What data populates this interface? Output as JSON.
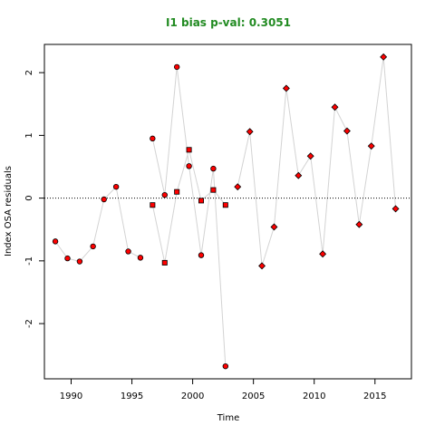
{
  "chart_data": {
    "type": "scatter",
    "title": "I1 bias p-val: 0.3051",
    "title_color": "#228b22",
    "xlabel": "Time",
    "ylabel": "Index OSA residuals",
    "xlim": [
      1987.8,
      2018.0
    ],
    "ylim": [
      -2.88,
      2.45
    ],
    "x_ticks": [
      1990,
      1995,
      2000,
      2005,
      2010,
      2015
    ],
    "y_ticks": [
      -2,
      -1,
      0,
      1,
      2
    ],
    "reference_line": {
      "y": 0,
      "style": "dotted"
    },
    "line_color": "#d3d3d3",
    "point_fill": "#ff0000",
    "point_stroke": "#000000",
    "grid": false,
    "series": [
      {
        "marker": "circle",
        "x": [
          1988.7,
          1989.7,
          1990.7,
          1991.8,
          1992.7,
          1993.7,
          1994.7,
          1995.7
        ],
        "y": [
          -0.69,
          -0.96,
          -1.01,
          -0.77,
          -0.02,
          0.18,
          -0.85,
          -0.95
        ]
      },
      {
        "marker": "square",
        "x": [
          1996.7,
          1997.7,
          1998.7,
          1999.7,
          2000.7,
          2001.7,
          2002.7
        ],
        "y": [
          -0.11,
          -1.03,
          0.1,
          0.77,
          -0.04,
          0.13,
          -0.11
        ]
      },
      {
        "marker": "circle",
        "x": [
          1996.7,
          1997.7,
          1998.7,
          1999.7,
          2000.7,
          2001.7,
          2002.7
        ],
        "y": [
          0.95,
          0.05,
          2.09,
          0.51,
          -0.91,
          0.47,
          -2.68
        ]
      },
      {
        "marker": "diamond",
        "x": [
          2003.7,
          2004.7,
          2005.7,
          2006.7,
          2007.7,
          2008.7,
          2009.7,
          2010.7,
          2011.7,
          2012.7,
          2013.7,
          2014.7,
          2015.7,
          2016.7
        ],
        "y": [
          0.18,
          1.06,
          -1.08,
          -0.46,
          1.75,
          0.36,
          0.67,
          -0.89,
          1.45,
          1.07,
          -0.42,
          0.83,
          2.25,
          -0.17
        ]
      }
    ]
  }
}
